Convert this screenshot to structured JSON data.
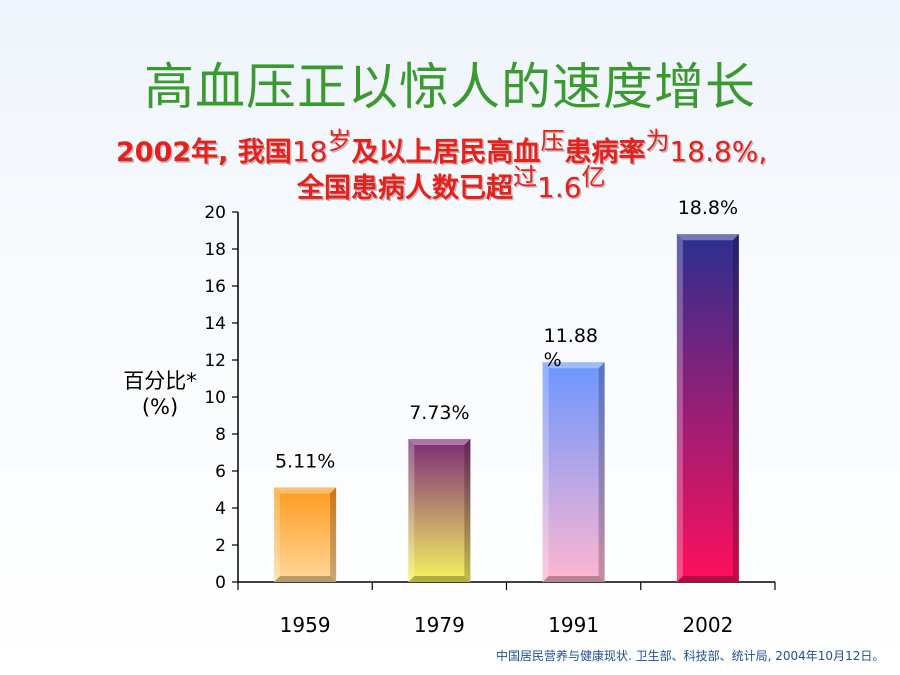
{
  "slide": {
    "title": "高血压正以惊人的速度增长",
    "subtitle_line1": {
      "a": "2002年, 我国",
      "b": "18",
      "c": "岁",
      "d": "及以上居民高血",
      "e": "压",
      "f": "患病率",
      "g": "为",
      "h": "18.8%,"
    },
    "subtitle_line2": {
      "a": "全国患病人数已超",
      "b": "过",
      "c": "1.6",
      "d": "亿"
    },
    "ylabel_line1": "百分比*",
    "ylabel_line2": "(%)",
    "footnote": "中国居民营养与健康现状. 卫生部、科技部、统计局, 2004年10月12日。"
  },
  "chart_data": {
    "type": "bar",
    "categories": [
      "1959",
      "1979",
      "1991",
      "2002"
    ],
    "values": [
      5.11,
      7.73,
      11.88,
      18.8
    ],
    "data_labels": [
      "5.11%",
      "7.73%",
      "11.88\n%",
      "18.8%"
    ],
    "ylim": [
      0,
      20
    ],
    "yticks": [
      0,
      2,
      4,
      6,
      8,
      10,
      12,
      14,
      16,
      18,
      20
    ],
    "grid": false,
    "bar_colors": [
      [
        "#ff9a1e",
        "#ffd89a"
      ],
      [
        "#7d2a76",
        "#f6f55e"
      ],
      [
        "#6b96ff",
        "#ffb6d0"
      ],
      [
        "#2b2f8f",
        "#ff0f5c"
      ]
    ]
  }
}
